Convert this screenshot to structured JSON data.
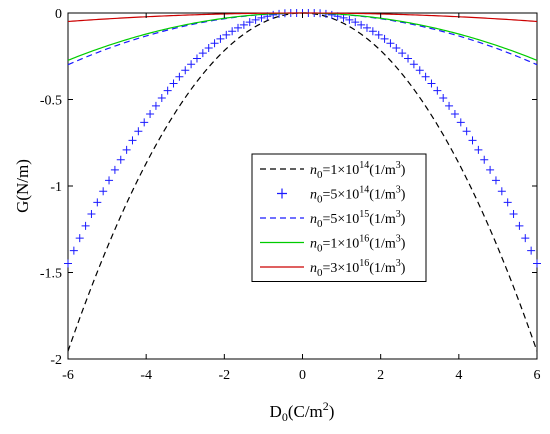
{
  "chart_data": {
    "type": "line",
    "xlabel": "D",
    "xlabel_sub": "0",
    "xlabel_unit": "(C/m",
    "xlabel_unit_sup": "2",
    "xlabel_tail": ")",
    "ylabel": "G(N/m)",
    "xlim": [
      -6,
      6
    ],
    "ylim": [
      -2,
      0
    ],
    "xticks": [
      "-6",
      "-4",
      "-2",
      "0",
      "2",
      "4",
      "6"
    ],
    "yticks": [
      "0",
      "-0.5",
      "-1",
      "-1.5",
      "-2"
    ],
    "grid": false,
    "legend_position": "right",
    "series": [
      {
        "name": "n0=1×10^14(1/m^3)",
        "label_base": "n",
        "label_sub": "0",
        "label_mid": "=1×10",
        "label_exp": "14",
        "label_tail": "(1/m",
        "label_tail_exp": "3",
        "label_end": ")",
        "color": "#000000",
        "style": "dashed",
        "peak": 0,
        "coef": -0.0543
      },
      {
        "name": "n0=5×10^14(1/m^3)",
        "label_base": "n",
        "label_sub": "0",
        "label_mid": "=5×10",
        "label_exp": "14",
        "label_tail": "(1/m",
        "label_tail_exp": "3",
        "label_end": ")",
        "color": "#1a1aff",
        "style": "plus",
        "peak": 0.25,
        "coef": -0.0438
      },
      {
        "name": "n0=5×10^15(1/m^3)",
        "label_base": "n",
        "label_sub": "0",
        "label_mid": "=5×10",
        "label_exp": "15",
        "label_tail": "(1/m",
        "label_tail_exp": "3",
        "label_end": ")",
        "color": "#1a1aff",
        "style": "dashed",
        "peak": 0,
        "coef": -0.0083
      },
      {
        "name": "n0=1×10^16(1/m^3)",
        "label_base": "n",
        "label_sub": "0",
        "label_mid": "=1×10",
        "label_exp": "16",
        "label_tail": "(1/m",
        "label_tail_exp": "3",
        "label_end": ")",
        "color": "#00cc00",
        "style": "solid",
        "peak": 0,
        "coef": -0.0076
      },
      {
        "name": "n0=3×10^16(1/m^3)",
        "label_base": "n",
        "label_sub": "0",
        "label_mid": "=3×10",
        "label_exp": "16",
        "label_tail": "(1/m",
        "label_tail_exp": "3",
        "label_end": ")",
        "color": "#cc0000",
        "style": "solid",
        "peak": 0,
        "coef": -0.00136
      }
    ]
  }
}
